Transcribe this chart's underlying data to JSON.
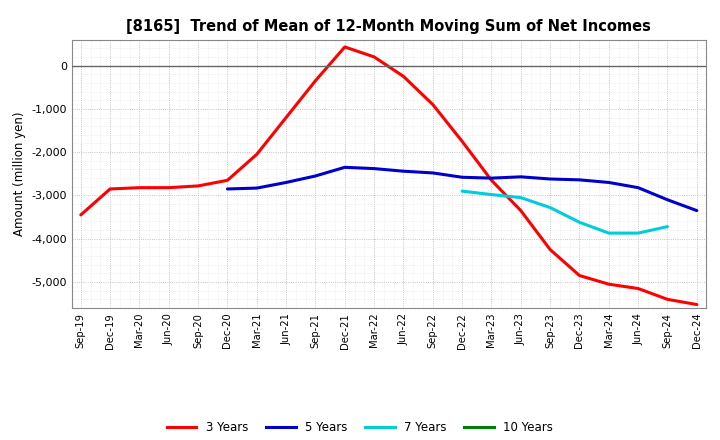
{
  "title": "[8165]  Trend of Mean of 12-Month Moving Sum of Net Incomes",
  "ylabel": "Amount (million yen)",
  "ylim": [
    -5600,
    600
  ],
  "yticks": [
    0,
    -1000,
    -2000,
    -3000,
    -4000,
    -5000
  ],
  "background_color": "#ffffff",
  "grid_color": "#999999",
  "x_labels": [
    "Sep-19",
    "Dec-19",
    "Mar-20",
    "Jun-20",
    "Sep-20",
    "Dec-20",
    "Mar-21",
    "Jun-21",
    "Sep-21",
    "Dec-21",
    "Mar-22",
    "Jun-22",
    "Sep-22",
    "Dec-22",
    "Mar-23",
    "Jun-23",
    "Sep-23",
    "Dec-23",
    "Mar-24",
    "Jun-24",
    "Sep-24",
    "Dec-24"
  ],
  "series": {
    "3years": {
      "color": "#ff0000",
      "label": "3 Years",
      "values": [
        -3450,
        -2850,
        -2820,
        -2820,
        -2780,
        -2650,
        -2050,
        -1200,
        -350,
        430,
        200,
        -250,
        -900,
        -1750,
        -2650,
        -3350,
        -4250,
        -4850,
        -5050,
        -5150,
        -5400,
        -5520
      ]
    },
    "5years": {
      "color": "#0000cc",
      "label": "5 Years",
      "values": [
        null,
        null,
        null,
        null,
        null,
        -2850,
        -2830,
        -2700,
        -2550,
        -2350,
        -2380,
        -2440,
        -2480,
        -2580,
        -2600,
        -2570,
        -2620,
        -2640,
        -2700,
        -2820,
        -3100,
        -3350
      ]
    },
    "7years": {
      "color": "#00ccdd",
      "label": "7 Years",
      "values": [
        null,
        null,
        null,
        null,
        null,
        null,
        null,
        null,
        null,
        null,
        null,
        null,
        null,
        -2900,
        -2980,
        -3050,
        -3280,
        -3620,
        -3870,
        -3870,
        -3720,
        null
      ]
    },
    "10years": {
      "color": "#008000",
      "label": "10 Years",
      "values": [
        null,
        null,
        null,
        null,
        null,
        null,
        null,
        null,
        null,
        null,
        null,
        null,
        null,
        null,
        null,
        null,
        null,
        null,
        null,
        null,
        null,
        null
      ]
    }
  }
}
